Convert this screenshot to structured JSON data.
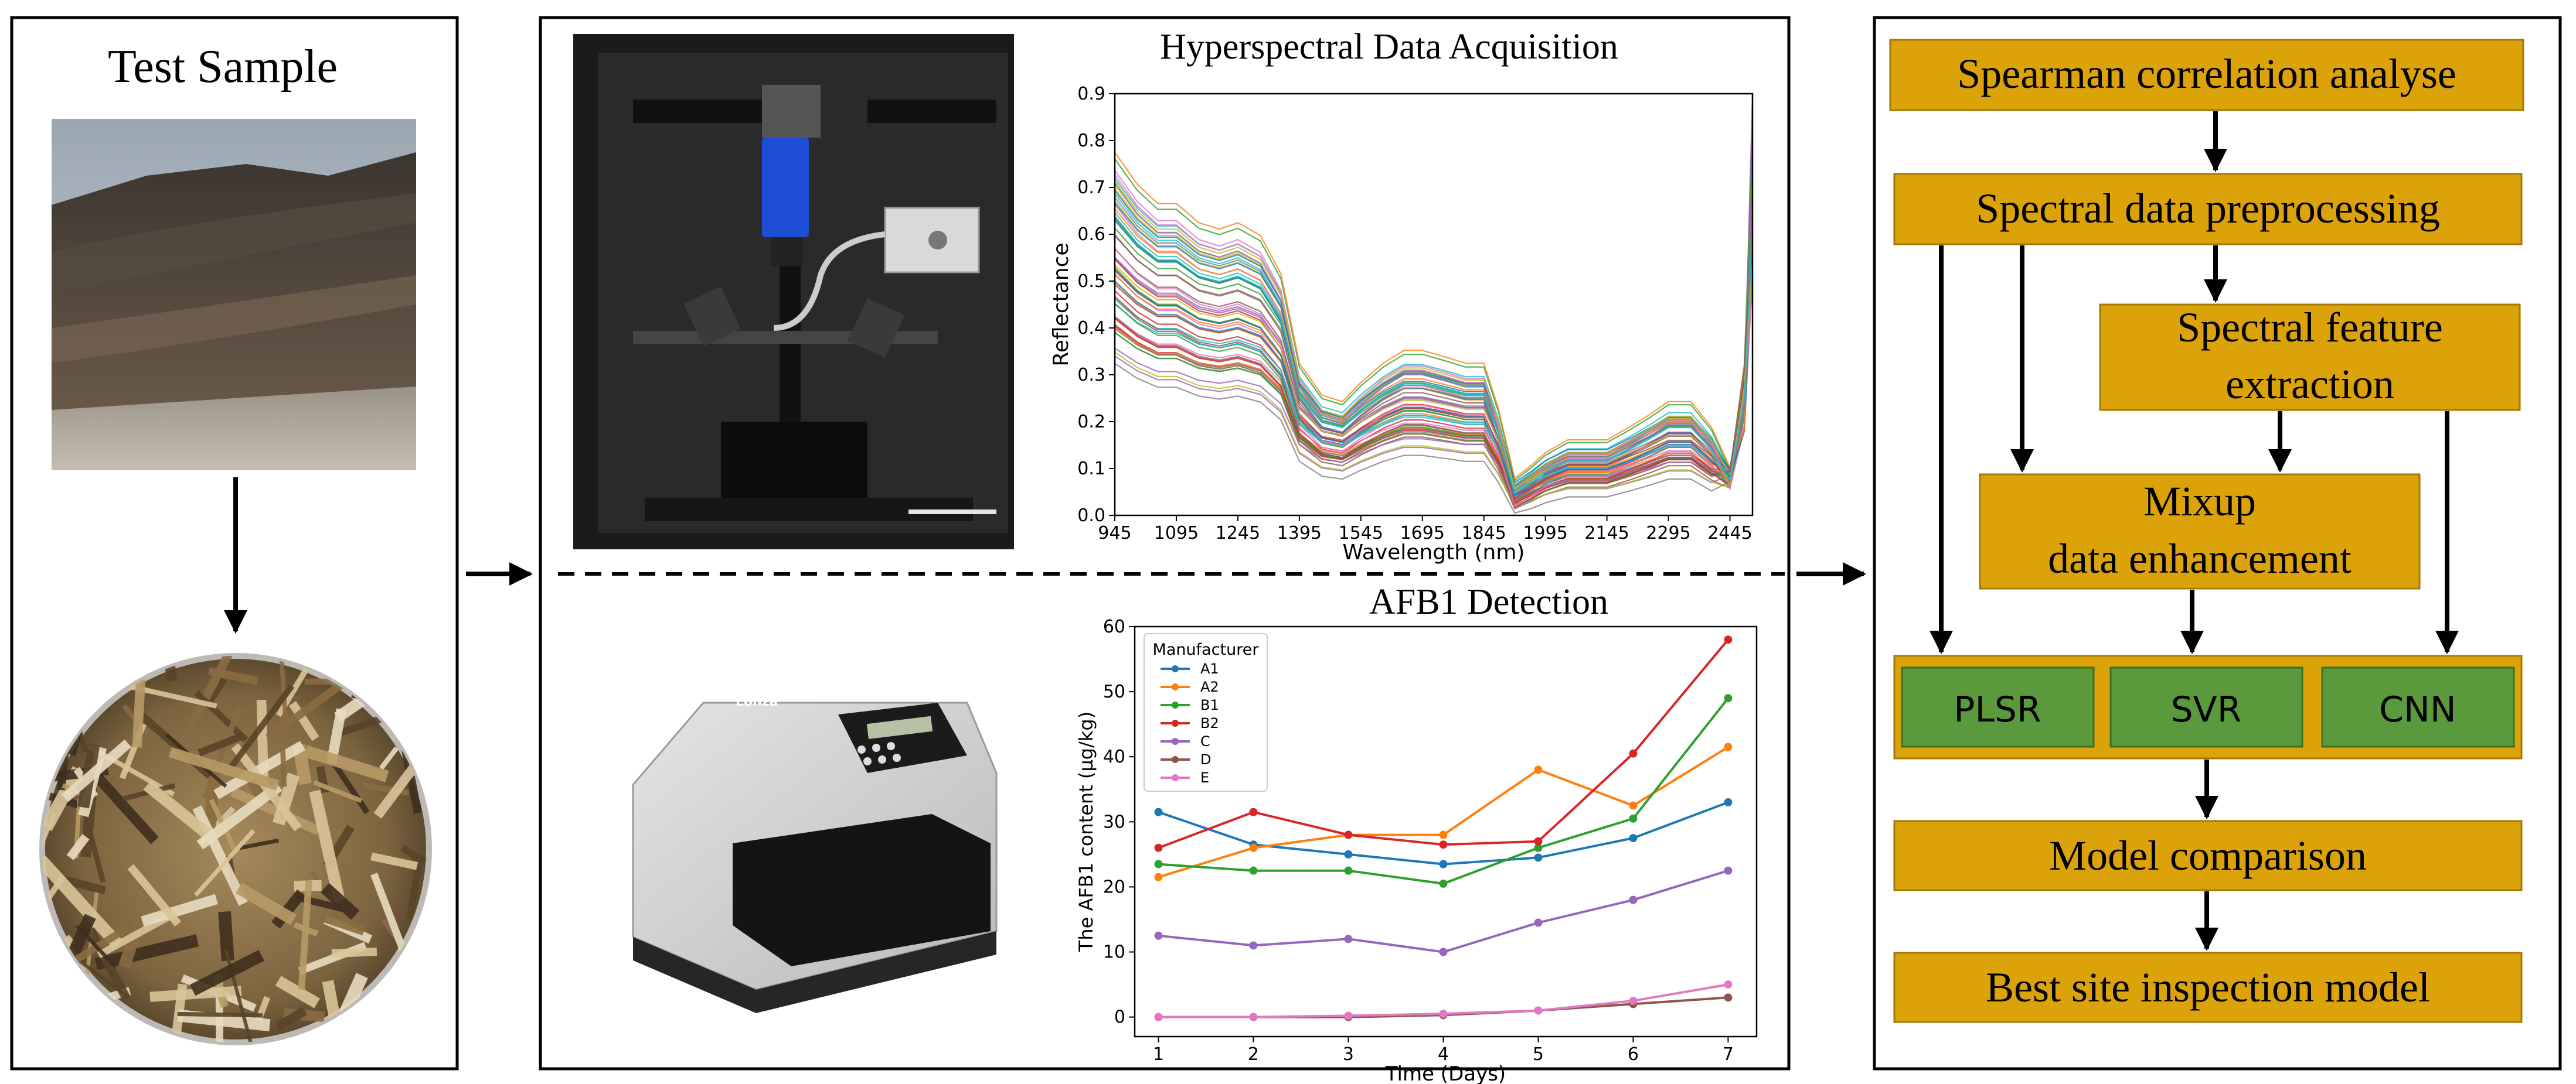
{
  "panel1": {
    "title": "Test Sample"
  },
  "panel2": {
    "spectral_title": "Hyperspectral Data Acquisition",
    "detection_title": "AFB1 Detection",
    "device_label": "Lonza"
  },
  "flow": {
    "steps": [
      "Spearman correlation analyse",
      "Spectral data preprocessing",
      "Spectral feature",
      "extraction",
      "Mixup",
      "data enhancement",
      "Model comparison",
      "Best site inspection model"
    ],
    "models": [
      "PLSR",
      "SVR",
      "CNN"
    ]
  },
  "chart_data": [
    {
      "type": "line",
      "title": "",
      "xlabel": "Wavelength (nm)",
      "ylabel": "Reflectance",
      "xlim": [
        945,
        2500
      ],
      "ylim": [
        0.0,
        0.9
      ],
      "x_ticks": [
        "945",
        "1095",
        "1245",
        "1395",
        "1545",
        "1695",
        "1845",
        "1995",
        "2145",
        "2295",
        "2445"
      ],
      "y_ticks": [
        "0.0",
        "0.1",
        "0.2",
        "0.3",
        "0.4",
        "0.5",
        "0.6",
        "0.7",
        "0.8",
        "0.9"
      ],
      "grid": false,
      "x": [
        945,
        1000,
        1050,
        1095,
        1150,
        1200,
        1245,
        1300,
        1350,
        1395,
        1450,
        1500,
        1545,
        1600,
        1650,
        1695,
        1750,
        1800,
        1845,
        1880,
        1920,
        1960,
        1995,
        2050,
        2100,
        2145,
        2200,
        2250,
        2295,
        2350,
        2400,
        2445,
        2480,
        2500
      ],
      "spectrum_mean": [
        0.55,
        0.5,
        0.47,
        0.47,
        0.44,
        0.43,
        0.44,
        0.42,
        0.36,
        0.22,
        0.17,
        0.16,
        0.19,
        0.22,
        0.24,
        0.24,
        0.23,
        0.22,
        0.22,
        0.15,
        0.04,
        0.06,
        0.08,
        0.1,
        0.1,
        0.1,
        0.12,
        0.14,
        0.16,
        0.16,
        0.12,
        0.08,
        0.25,
        0.7
      ],
      "spectrum_count": 60,
      "colors": [
        "#1f77b4",
        "#ff7f0e",
        "#2ca02c",
        "#d62728",
        "#9467bd",
        "#8c564b",
        "#e377c2",
        "#7f7f7f",
        "#bcbd22",
        "#17becf"
      ]
    },
    {
      "type": "line",
      "title": "",
      "xlabel": "Time (Days)",
      "ylabel": "The AFB1 content (μg/kg)",
      "legend_title": "Manufacturer",
      "legend_position": "top-left",
      "xlim": [
        0.75,
        7.3
      ],
      "ylim": [
        -3,
        60
      ],
      "x": [
        1,
        2,
        3,
        4,
        5,
        6,
        7
      ],
      "x_ticks": [
        "1",
        "2",
        "3",
        "4",
        "5",
        "6",
        "7"
      ],
      "y_ticks": [
        "0",
        "10",
        "20",
        "30",
        "40",
        "50",
        "60"
      ],
      "grid": false,
      "series": [
        {
          "name": "A1",
          "color": "#1f77b4",
          "values": [
            31.5,
            26.5,
            25.0,
            23.5,
            24.5,
            27.5,
            33.0
          ]
        },
        {
          "name": "A2",
          "color": "#ff7f0e",
          "values": [
            21.5,
            26.0,
            28.0,
            28.0,
            38.0,
            32.5,
            41.5
          ]
        },
        {
          "name": "B1",
          "color": "#2ca02c",
          "values": [
            23.5,
            22.5,
            22.5,
            20.5,
            26.0,
            30.5,
            49.0
          ]
        },
        {
          "name": "B2",
          "color": "#d62728",
          "values": [
            26.0,
            31.5,
            28.0,
            26.5,
            27.0,
            40.5,
            58.0
          ]
        },
        {
          "name": "C",
          "color": "#9467bd",
          "values": [
            12.5,
            11.0,
            12.0,
            10.0,
            14.5,
            18.0,
            22.5
          ]
        },
        {
          "name": "D",
          "color": "#8c564b",
          "values": [
            0.0,
            0.0,
            0.0,
            0.3,
            1.0,
            2.0,
            3.0
          ]
        },
        {
          "name": "E",
          "color": "#e377c2",
          "values": [
            0.0,
            0.0,
            0.2,
            0.5,
            1.0,
            2.5,
            5.0
          ]
        }
      ]
    }
  ]
}
